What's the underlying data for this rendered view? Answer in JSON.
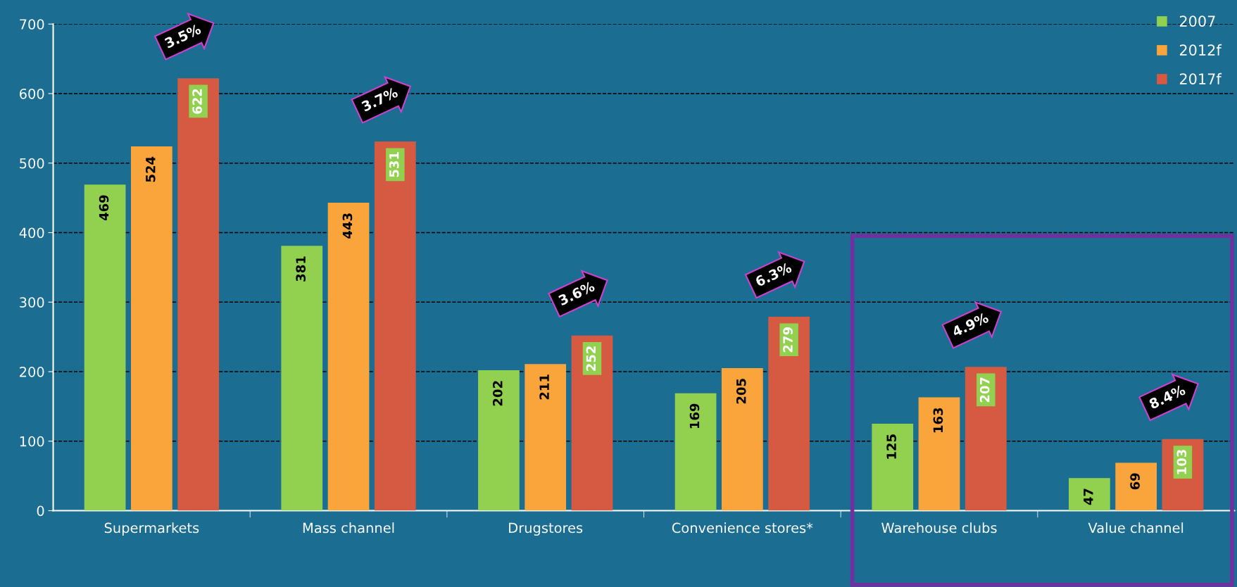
{
  "chart_data": {
    "type": "bar",
    "categories": [
      "Supermarkets",
      "Mass channel",
      "Drugstores",
      "Convenience stores*",
      "Warehouse clubs",
      "Value channel"
    ],
    "series": [
      {
        "name": "2007",
        "color": "#92d050",
        "values": [
          469,
          381,
          202,
          169,
          125,
          47
        ]
      },
      {
        "name": "2012f",
        "color": "#f9a53c",
        "values": [
          524,
          443,
          211,
          205,
          163,
          69
        ]
      },
      {
        "name": "2017f",
        "color": "#d65a42",
        "values": [
          622,
          531,
          252,
          279,
          207,
          103
        ]
      }
    ],
    "ylim": [
      0,
      700
    ],
    "yticks": [
      0,
      100,
      200,
      300,
      400,
      500,
      600,
      700
    ],
    "grid": "y",
    "legend": "top right",
    "data_labels": true,
    "annotations": [
      "3.5%",
      "3.7%",
      "3.6%",
      "6.3%",
      "4.9%",
      "8.4%"
    ]
  }
}
